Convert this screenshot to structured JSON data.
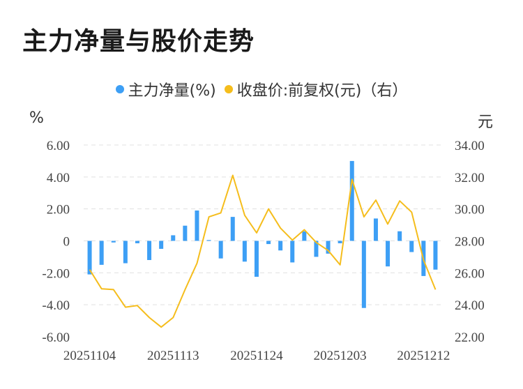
{
  "title": "主力净量与股价走势",
  "legend": {
    "net": "主力净量(%)",
    "price": "收盘价:前复权(元)（右）"
  },
  "units": {
    "left": "%",
    "right": "元"
  },
  "colors": {
    "bar": "#3d9ff5",
    "line": "#f5bd1c",
    "grid": "#e0e0e0"
  },
  "chart_data": {
    "type": "bar+line",
    "x": [
      "20251104",
      "20251105",
      "20251106",
      "20251107",
      "20251110",
      "20251111",
      "20251112",
      "20251113",
      "20251114",
      "20251117",
      "20251118",
      "20251119",
      "20251120",
      "20251121",
      "20251124",
      "20251125",
      "20251126",
      "20251127",
      "20251128",
      "20251201",
      "20251202",
      "20251203",
      "20251204",
      "20251205",
      "20251208",
      "20251209",
      "20251210",
      "20251211",
      "20251212",
      "20251215"
    ],
    "x_tick_labels": [
      "20251104",
      "20251113",
      "20251124",
      "20251203",
      "20251212"
    ],
    "x_tick_indices": [
      0,
      7,
      14,
      21,
      28
    ],
    "series": [
      {
        "name": "主力净量(%)",
        "type": "bar",
        "axis": "left",
        "values": [
          -2.1,
          -1.5,
          -0.1,
          -1.4,
          -0.15,
          -1.2,
          -0.5,
          0.35,
          0.95,
          1.9,
          0.05,
          -1.1,
          1.5,
          -1.3,
          -2.25,
          -0.2,
          -0.6,
          -1.35,
          0.6,
          -1.0,
          -0.8,
          -0.15,
          5.0,
          -4.2,
          1.4,
          -1.6,
          0.6,
          -0.7,
          -2.2,
          -1.8
        ]
      },
      {
        "name": "收盘价:前复权(元)（右）",
        "type": "line",
        "axis": "right",
        "values": [
          26.2,
          25.0,
          24.95,
          23.85,
          23.95,
          23.2,
          22.6,
          23.2,
          24.95,
          26.6,
          29.5,
          29.75,
          32.1,
          29.6,
          28.5,
          30.0,
          28.8,
          28.05,
          28.7,
          27.9,
          27.4,
          26.5,
          31.85,
          29.5,
          30.55,
          29.05,
          30.5,
          29.8,
          26.8,
          24.95
        ]
      }
    ],
    "y_left": {
      "ticks": [
        "-6.00",
        "-4.00",
        "-2.00",
        "0",
        "2.00",
        "4.00",
        "6.00"
      ],
      "min": -6,
      "max": 6
    },
    "y_right": {
      "ticks": [
        "22.00",
        "24.00",
        "26.00",
        "28.00",
        "30.00",
        "32.00",
        "34.00"
      ],
      "min": 22,
      "max": 34
    },
    "grid": true,
    "legend_position": "top-center"
  }
}
